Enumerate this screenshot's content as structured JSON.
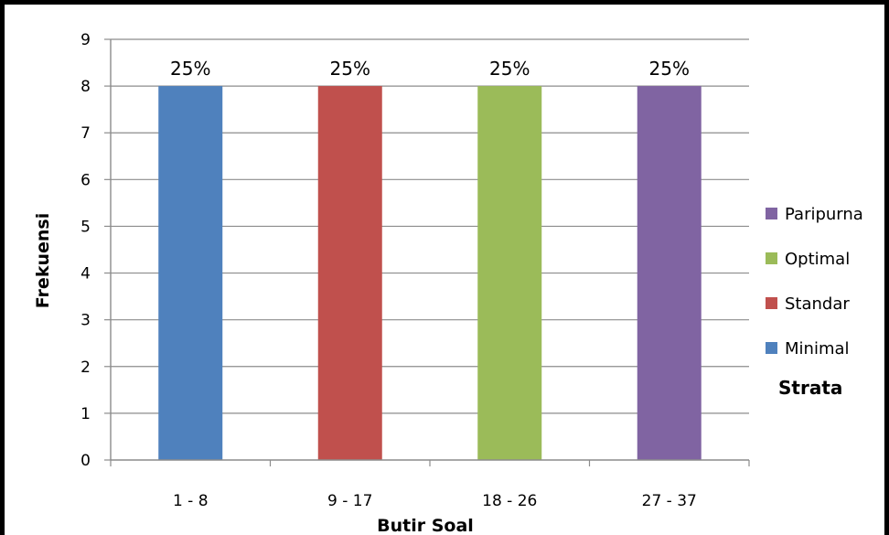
{
  "chart_data": {
    "type": "bar",
    "categories": [
      "1 - 8",
      "9 - 17",
      "18 - 26",
      "27 - 37"
    ],
    "series": [
      {
        "name": "Minimal",
        "color": "#4f81bd",
        "values": [
          8,
          null,
          null,
          null
        ],
        "labels": [
          "25%",
          null,
          null,
          null
        ]
      },
      {
        "name": "Standar",
        "color": "#c0504d",
        "values": [
          null,
          8,
          null,
          null
        ],
        "labels": [
          null,
          "25%",
          null,
          null
        ]
      },
      {
        "name": "Optimal",
        "color": "#9bbb59",
        "values": [
          null,
          null,
          8,
          null
        ],
        "labels": [
          null,
          null,
          "25%",
          null
        ]
      },
      {
        "name": "Paripurna",
        "color": "#8064a2",
        "values": [
          null,
          null,
          null,
          8
        ],
        "labels": [
          null,
          null,
          null,
          "25%"
        ]
      }
    ],
    "title": "",
    "xlabel": "Butir Soal",
    "ylabel": "Frekuensi",
    "ylim": [
      0,
      9
    ],
    "yticks": [
      0,
      1,
      2,
      3,
      4,
      5,
      6,
      7,
      8,
      9
    ],
    "grid": true,
    "legend": {
      "title": "Strata",
      "placement": "right",
      "order": [
        "Paripurna",
        "Optimal",
        "Standar",
        "Minimal"
      ]
    }
  }
}
